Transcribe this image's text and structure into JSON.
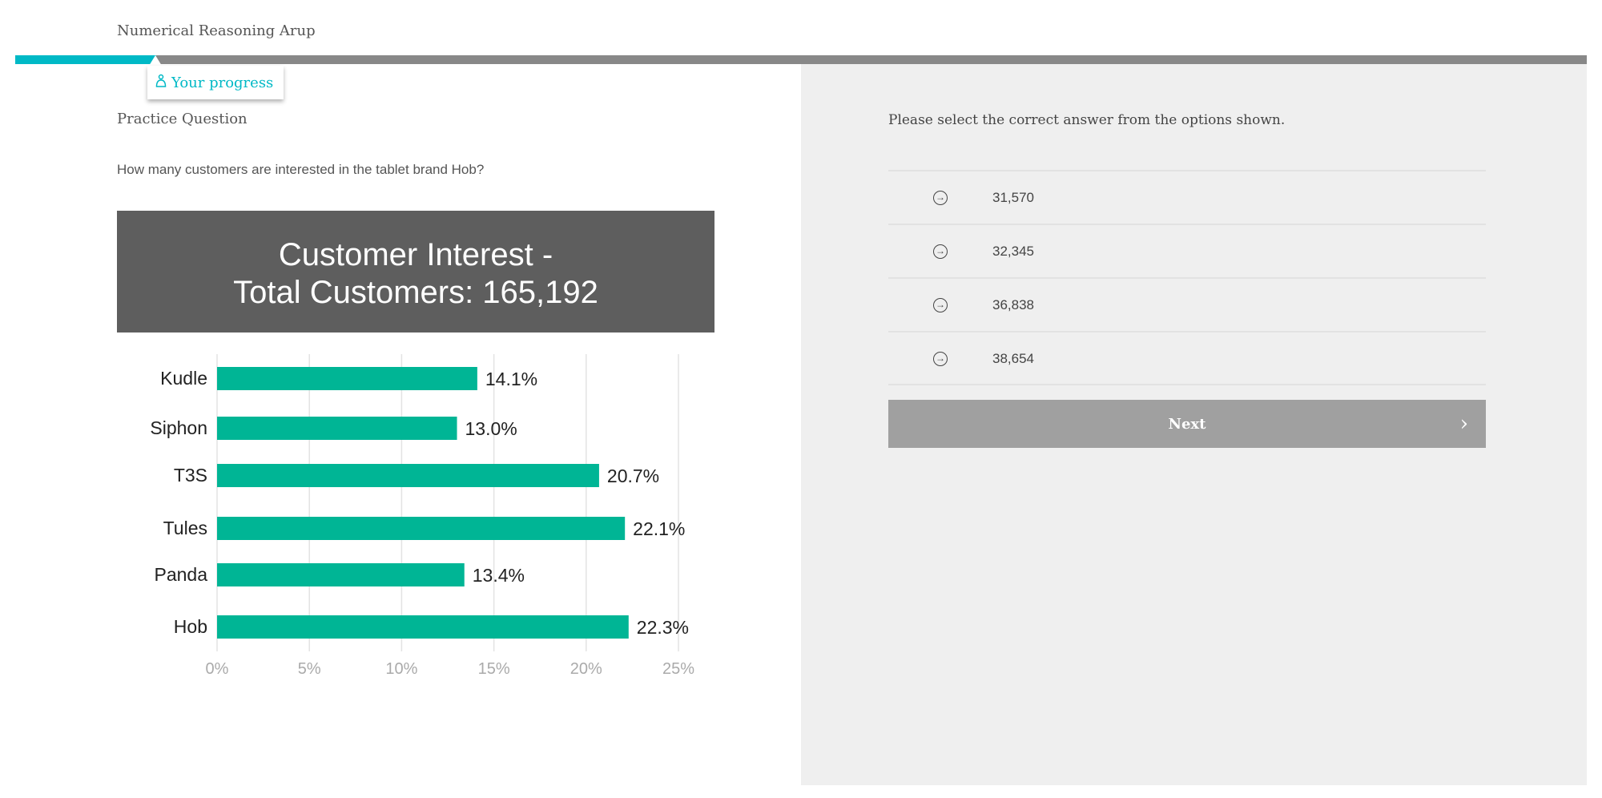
{
  "header": {
    "title": "Numerical Reasoning Arup",
    "progress_label": "Your progress",
    "progress_fraction": 0.1
  },
  "question": {
    "section": "Practice Question",
    "text": "How many customers are interested in the tablet brand Hob?"
  },
  "chart_data": {
    "type": "bar",
    "orientation": "horizontal",
    "title": "Customer Interest -",
    "subtitle": "Total Customers: 165,192",
    "categories": [
      "Kudle",
      "Siphon",
      "T3S",
      "Tules",
      "Panda",
      "Hob"
    ],
    "values": [
      14.1,
      13.0,
      20.7,
      22.1,
      13.4,
      22.3
    ],
    "value_labels": [
      "14.1%",
      "13.0%",
      "20.7%",
      "22.1%",
      "13.4%",
      "22.3%"
    ],
    "xticks": [
      "0%",
      "5%",
      "10%",
      "15%",
      "20%",
      "25%"
    ],
    "xlim": [
      0,
      25
    ],
    "grid": true,
    "bar_color": "#00b595"
  },
  "answers": {
    "instruction": "Please select the correct answer from the options shown.",
    "options": [
      "31,570",
      "32,345",
      "36,838",
      "38,654"
    ],
    "option_icon": "circle-arrow-right-icon",
    "next_label": "Next"
  },
  "colors": {
    "accent": "#00b9c6",
    "progress_track": "#888888",
    "button": "#a0a0a0"
  }
}
